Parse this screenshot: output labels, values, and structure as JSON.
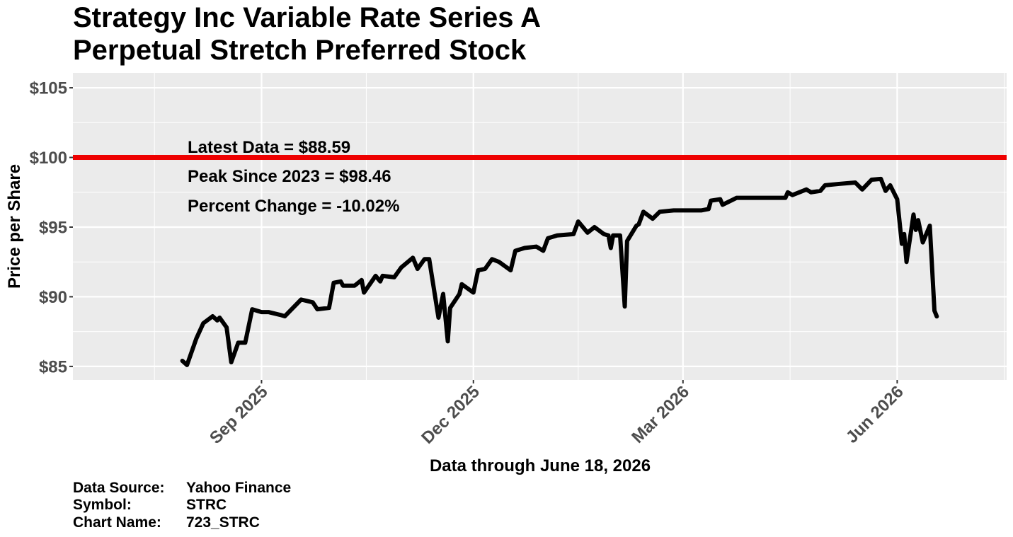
{
  "chart_data": {
    "type": "line",
    "title": [
      "Strategy Inc Variable Rate Series A",
      "Perpetual Stretch Preferred Stock"
    ],
    "xlabel": "Data through June 18, 2026",
    "ylabel": "Price per Share",
    "annotations": [
      "Latest Data = $88.59",
      "Peak Since 2023 = $98.46",
      "Percent Change = -10.02%"
    ],
    "caption": [
      {
        "label": "Data Source:",
        "value": "Yahoo Finance"
      },
      {
        "label": "Symbol:",
        "value": "STRC"
      },
      {
        "label": "Chart Name:",
        "value": "723_STRC"
      }
    ],
    "color": "#000000",
    "hline": {
      "value": 100,
      "color": "#ee0000"
    },
    "grid": true,
    "xlim": [
      "2025-06-12",
      "2026-07-18"
    ],
    "xticks": [
      {
        "value": "2025-09-01",
        "label": "Sep 2025"
      },
      {
        "value": "2025-12-01",
        "label": "Dec 2025"
      },
      {
        "value": "2026-03-01",
        "label": "Mar 2026"
      },
      {
        "value": "2026-06-01",
        "label": "Jun 2026"
      }
    ],
    "xminor": [
      "2025-07-17",
      "2025-10-16",
      "2026-01-15",
      "2026-04-16",
      "2026-07-17"
    ],
    "ylim": [
      84.03,
      106.07
    ],
    "yticks": [
      {
        "value": 85,
        "label": "$85"
      },
      {
        "value": 90,
        "label": "$90"
      },
      {
        "value": 95,
        "label": "$95"
      },
      {
        "value": 100,
        "label": "$100"
      },
      {
        "value": 105,
        "label": "$105"
      }
    ],
    "yminor": [
      87.5,
      92.5,
      97.5,
      102.5
    ],
    "x": [
      "2025-07-29",
      "2025-07-31",
      "2025-08-04",
      "2025-08-07",
      "2025-08-11",
      "2025-08-13",
      "2025-08-14",
      "2025-08-17",
      "2025-08-19",
      "2025-08-22",
      "2025-08-25",
      "2025-08-28",
      "2025-09-01",
      "2025-09-04",
      "2025-09-09",
      "2025-09-11",
      "2025-09-18",
      "2025-09-23",
      "2025-09-25",
      "2025-09-30",
      "2025-10-02",
      "2025-10-05",
      "2025-10-06",
      "2025-10-11",
      "2025-10-14",
      "2025-10-15",
      "2025-10-20",
      "2025-10-22",
      "2025-10-23",
      "2025-10-28",
      "2025-10-31",
      "2025-11-05",
      "2025-11-07",
      "2025-11-10",
      "2025-11-12",
      "2025-11-16",
      "2025-11-18",
      "2025-11-20",
      "2025-11-21",
      "2025-11-25",
      "2025-11-26",
      "2025-12-01",
      "2025-12-03",
      "2025-12-06",
      "2025-12-09",
      "2025-12-12",
      "2025-12-17",
      "2025-12-19",
      "2025-12-23",
      "2025-12-28",
      "2025-12-31",
      "2026-01-02",
      "2026-01-06",
      "2026-01-13",
      "2026-01-15",
      "2026-01-19",
      "2026-01-22",
      "2026-01-26",
      "2026-01-28",
      "2026-01-29",
      "2026-01-30",
      "2026-02-02",
      "2026-02-04",
      "2026-02-05",
      "2026-02-09",
      "2026-02-10",
      "2026-02-12",
      "2026-02-16",
      "2026-02-19",
      "2026-02-25",
      "2026-03-09",
      "2026-03-12",
      "2026-03-13",
      "2026-03-17",
      "2026-03-18",
      "2026-03-24",
      "2026-03-30",
      "2026-04-14",
      "2026-04-15",
      "2026-04-17",
      "2026-04-23",
      "2026-04-25",
      "2026-04-29",
      "2026-05-01",
      "2026-05-07",
      "2026-05-14",
      "2026-05-17",
      "2026-05-21",
      "2026-05-25",
      "2026-05-27",
      "2026-05-29",
      "2026-06-01",
      "2026-06-03",
      "2026-06-04",
      "2026-06-05",
      "2026-06-08",
      "2026-06-09",
      "2026-06-10",
      "2026-06-12",
      "2026-06-15",
      "2026-06-17",
      "2026-06-18"
    ],
    "values": [
      85.4,
      85.1,
      87.0,
      88.1,
      88.6,
      88.3,
      88.5,
      87.8,
      85.3,
      86.7,
      86.7,
      89.1,
      88.9,
      88.9,
      88.7,
      88.6,
      89.8,
      89.6,
      89.1,
      89.2,
      91.0,
      91.1,
      90.8,
      90.8,
      91.2,
      90.3,
      91.5,
      91.1,
      91.5,
      91.4,
      92.1,
      92.8,
      92.0,
      92.7,
      92.7,
      88.5,
      90.2,
      86.8,
      89.2,
      90.2,
      90.9,
      90.3,
      91.9,
      92.0,
      92.7,
      92.5,
      91.9,
      93.3,
      93.5,
      93.6,
      93.3,
      94.2,
      94.4,
      94.5,
      95.4,
      94.6,
      95.0,
      94.5,
      94.4,
      93.5,
      94.4,
      94.4,
      89.3,
      94.0,
      95.1,
      95.2,
      96.1,
      95.6,
      96.1,
      96.2,
      96.2,
      96.3,
      96.9,
      97.0,
      96.6,
      97.1,
      97.1,
      97.1,
      97.5,
      97.3,
      97.7,
      97.5,
      97.6,
      98.0,
      98.1,
      98.2,
      97.7,
      98.4,
      98.46,
      97.6,
      98.0,
      97.0,
      93.8,
      94.5,
      92.5,
      95.9,
      94.8,
      95.5,
      93.9,
      95.1,
      89.0,
      88.59
    ]
  }
}
